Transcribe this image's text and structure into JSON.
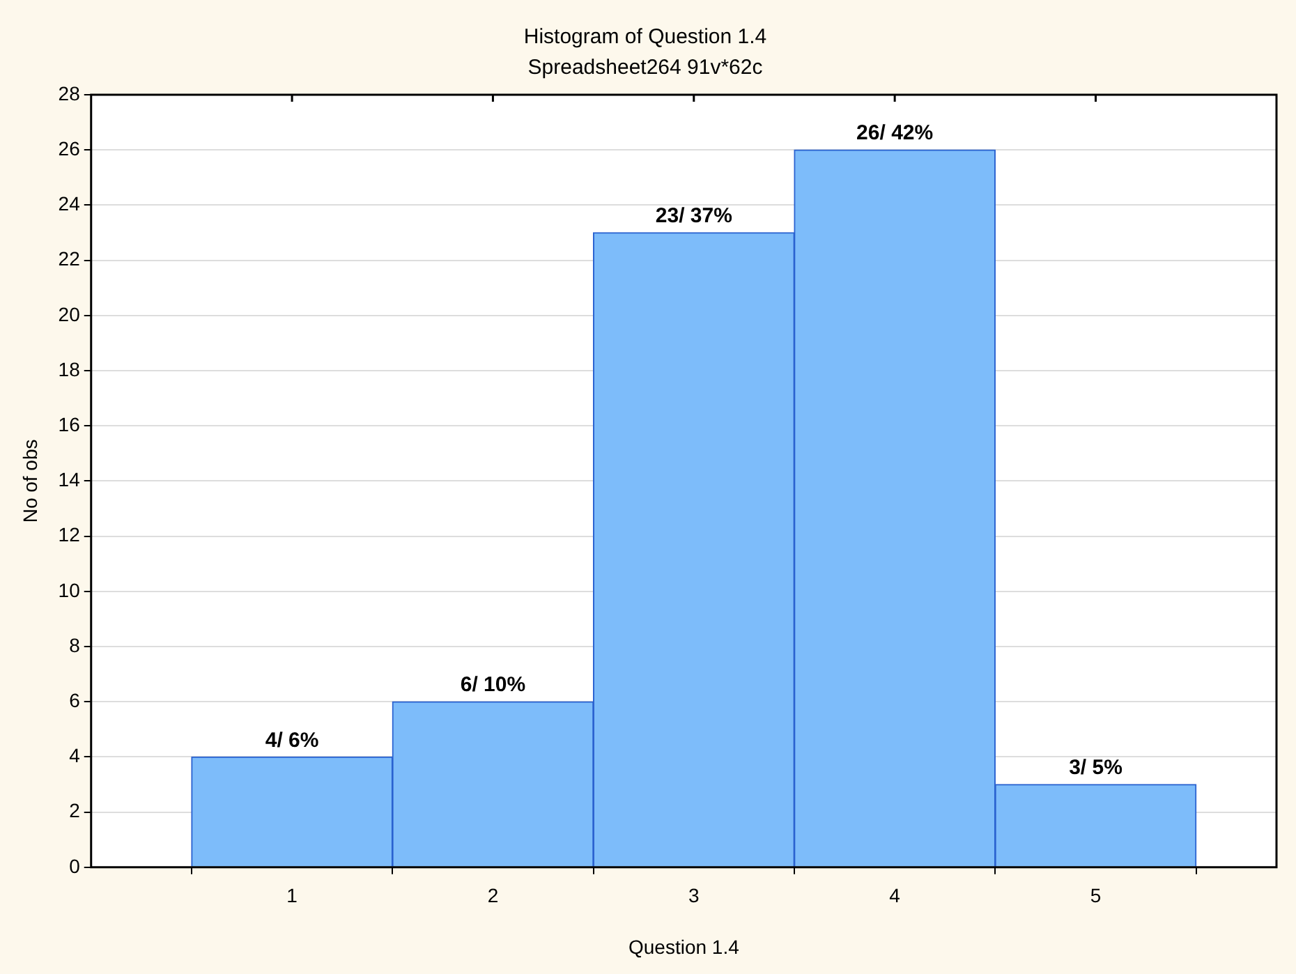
{
  "chart_data": {
    "type": "histogram",
    "title": "Histogram of Question 1.4",
    "subtitle": "Spreadsheet264 91v*62c",
    "xlabel": "Question 1.4",
    "ylabel": "No of obs",
    "bins": [
      0.5,
      1.5,
      2.5,
      3.5,
      4.5,
      5.5
    ],
    "values": [
      4,
      6,
      23,
      26,
      3
    ],
    "value_labels": [
      "4/ 6%",
      "6/ 10%",
      "23/ 37%",
      "26/ 42%",
      "3/ 5%"
    ],
    "color": "#7dbcfa",
    "xlim": [
      0,
      5.9
    ],
    "xticks": [
      1,
      2,
      3,
      4,
      5
    ],
    "ylim": [
      0,
      28
    ],
    "yticks": [
      0,
      2,
      4,
      6,
      8,
      10,
      12,
      14,
      16,
      18,
      20,
      22,
      24,
      26,
      28
    ],
    "grid": "y"
  }
}
